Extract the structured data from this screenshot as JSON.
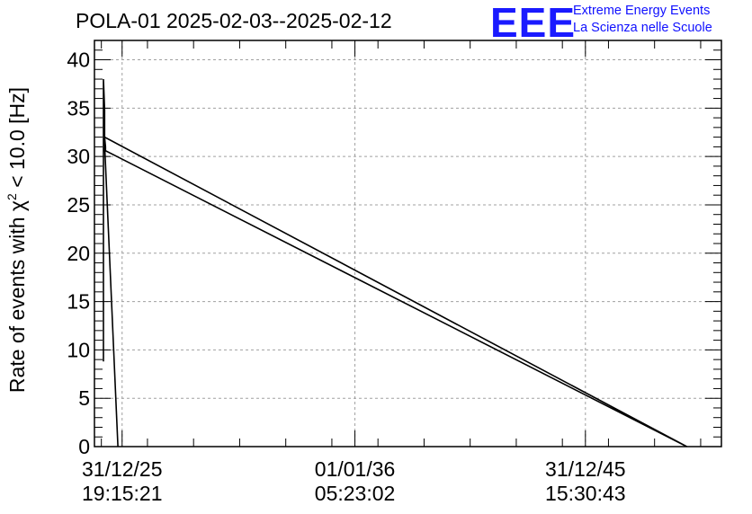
{
  "title": "POLA-01 2025-02-03--2025-02-12",
  "logo": {
    "letters": "EEE",
    "line1": "Extreme Energy Events",
    "line2": "La Scienza nelle Scuole",
    "color": "#1a1aff"
  },
  "chart_data": {
    "type": "line",
    "title": "POLA-01 2025-02-03--2025-02-12",
    "ylabel": {
      "pre": "Rate of events with ",
      "chi": "χ",
      "sup": "2",
      "post": " < 10.0 [Hz]"
    },
    "ylim": [
      0,
      42
    ],
    "yticks": [
      0,
      5,
      10,
      15,
      20,
      25,
      30,
      35,
      40
    ],
    "xrange_years": [
      2024.7,
      2051.9
    ],
    "xticks": [
      {
        "pos": 2025.9,
        "line1": "31/12/25",
        "line2": "19:15:21"
      },
      {
        "pos": 2036.0,
        "line1": "01/01/36",
        "line2": "05:23:02"
      },
      {
        "pos": 2046.0,
        "line1": "31/12/45",
        "line2": "15:30:43"
      }
    ],
    "grid": true,
    "series": [
      {
        "color": "#000000",
        "x": [
          2025.09,
          2025.09,
          2025.14,
          2025.14,
          2025.18,
          2025.18,
          2050.4,
          2025.14,
          2025.09,
          2025.72
        ],
        "y": [
          8.8,
          38.0,
          34.8,
          32.0,
          31.0,
          30.6,
          0.0,
          32.0,
          34.0,
          0.0
        ]
      }
    ]
  }
}
